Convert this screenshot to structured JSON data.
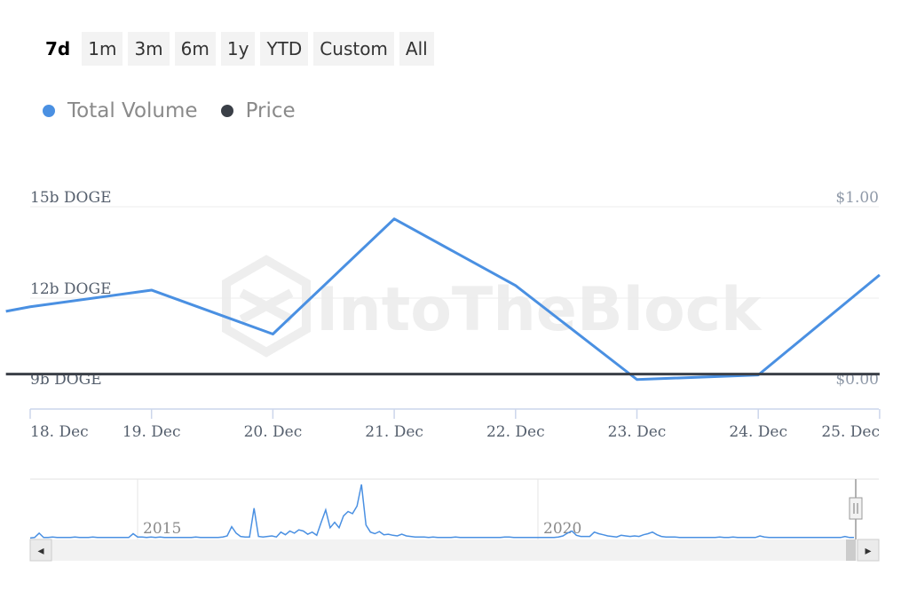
{
  "range_buttons": [
    {
      "label": "7d",
      "active": true
    },
    {
      "label": "1m",
      "active": false
    },
    {
      "label": "3m",
      "active": false
    },
    {
      "label": "6m",
      "active": false
    },
    {
      "label": "1y",
      "active": false
    },
    {
      "label": "YTD",
      "active": false
    },
    {
      "label": "Custom",
      "active": false
    },
    {
      "label": "All",
      "active": false
    }
  ],
  "legend": [
    {
      "name": "Total Volume",
      "color": "#4a90e2"
    },
    {
      "name": "Price",
      "color": "#3a3f47"
    }
  ],
  "watermark": "IntoTheBlock",
  "chart_data": {
    "type": "line",
    "categories": [
      "18. Dec",
      "19. Dec",
      "20. Dec",
      "21. Dec",
      "22. Dec",
      "23. Dec",
      "24. Dec",
      "25. Dec"
    ],
    "y_left": {
      "ticks": [
        "15b DOGE",
        "12b DOGE",
        "9b DOGE"
      ],
      "range": [
        9,
        15
      ],
      "unit": "b DOGE"
    },
    "y_right": {
      "ticks": [
        "$1.00",
        "$0.00"
      ],
      "range": [
        0,
        1
      ]
    },
    "grid": true,
    "legend_position": "top-left",
    "series": [
      {
        "name": "Total Volume",
        "color": "#4a90e2",
        "axis": "left",
        "x": [
          0,
          1,
          2,
          3,
          4,
          5,
          6,
          7
        ],
        "values": [
          11.7,
          12.25,
          10.8,
          14.6,
          12.4,
          9.3,
          9.45,
          12.75
        ],
        "x_start": -0.2,
        "value_start": 11.55
      },
      {
        "name": "Price",
        "color": "#3a3f47",
        "axis": "right",
        "x": [
          0,
          1,
          2,
          3,
          4,
          5,
          6,
          7
        ],
        "values": [
          0.08,
          0.08,
          0.08,
          0.08,
          0.08,
          0.08,
          0.08,
          0.08
        ],
        "x_start": -0.2,
        "value_start": 0.08
      }
    ]
  },
  "navigator": {
    "year_labels": [
      "2015",
      "2020"
    ],
    "left_arrow": "◂",
    "right_arrow": "▸",
    "history": [
      0.01,
      0.02,
      0.1,
      0.02,
      0.02,
      0.03,
      0.02,
      0.02,
      0.02,
      0.02,
      0.03,
      0.02,
      0.02,
      0.02,
      0.03,
      0.02,
      0.02,
      0.02,
      0.02,
      0.02,
      0.02,
      0.02,
      0.02,
      0.09,
      0.03,
      0.03,
      0.02,
      0.03,
      0.02,
      0.03,
      0.02,
      0.02,
      0.02,
      0.02,
      0.02,
      0.02,
      0.02,
      0.03,
      0.02,
      0.02,
      0.02,
      0.02,
      0.02,
      0.03,
      0.05,
      0.22,
      0.1,
      0.04,
      0.03,
      0.03,
      0.56,
      0.04,
      0.03,
      0.04,
      0.05,
      0.03,
      0.12,
      0.07,
      0.14,
      0.1,
      0.16,
      0.14,
      0.08,
      0.12,
      0.06,
      0.3,
      0.53,
      0.2,
      0.3,
      0.2,
      0.42,
      0.5,
      0.46,
      0.6,
      1.0,
      0.25,
      0.12,
      0.09,
      0.13,
      0.07,
      0.08,
      0.06,
      0.05,
      0.08,
      0.05,
      0.04,
      0.03,
      0.03,
      0.03,
      0.02,
      0.03,
      0.02,
      0.02,
      0.02,
      0.02,
      0.03,
      0.02,
      0.02,
      0.02,
      0.02,
      0.02,
      0.02,
      0.02,
      0.02,
      0.02,
      0.02,
      0.03,
      0.03,
      0.02,
      0.02,
      0.02,
      0.02,
      0.02,
      0.02,
      0.02,
      0.02,
      0.02,
      0.02,
      0.03,
      0.05,
      0.1,
      0.14,
      0.06,
      0.04,
      0.04,
      0.04,
      0.12,
      0.09,
      0.07,
      0.05,
      0.04,
      0.03,
      0.06,
      0.05,
      0.04,
      0.05,
      0.04,
      0.07,
      0.09,
      0.12,
      0.07,
      0.04,
      0.03,
      0.03,
      0.03,
      0.02,
      0.02,
      0.02,
      0.02,
      0.02,
      0.02,
      0.02,
      0.02,
      0.02,
      0.03,
      0.02,
      0.02,
      0.03,
      0.02,
      0.02,
      0.02,
      0.02,
      0.02,
      0.05,
      0.03,
      0.02,
      0.02,
      0.02,
      0.02,
      0.02,
      0.02,
      0.02,
      0.02,
      0.02,
      0.02,
      0.02,
      0.02,
      0.02,
      0.02,
      0.02,
      0.02,
      0.02,
      0.04,
      0.02,
      0.02
    ]
  }
}
